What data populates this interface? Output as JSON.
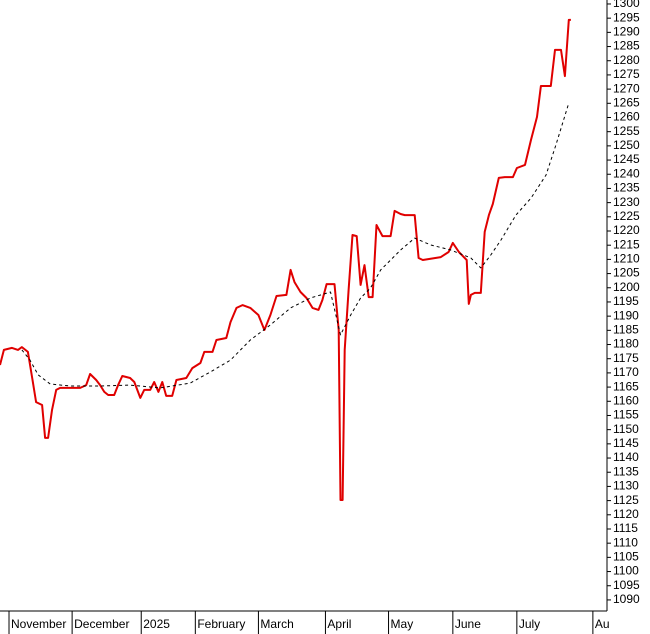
{
  "chart_data": {
    "type": "line",
    "series": [
      {
        "color": "#e00000",
        "dash": false,
        "x": [
          0,
          1.3,
          4,
          6,
          7.3,
          9.3,
          10.7,
          12,
          14,
          15,
          16,
          17.3,
          18.7,
          20,
          23.3,
          26.7,
          28.7,
          30,
          32,
          33.3,
          34.7,
          36,
          38,
          39.3,
          40.7,
          43.3,
          44.7,
          46.7,
          48,
          50,
          51.3,
          52.7,
          54,
          55.3,
          57.3,
          58.7,
          62,
          64,
          66.7,
          68,
          70.7,
          72,
          75.3,
          76.7,
          78.7,
          80.7,
          83.3,
          86,
          88,
          90,
          92,
          95.3,
          96.7,
          98,
          100,
          102,
          104,
          106,
          107.3,
          108.7,
          111.3,
          112.7,
          113.3,
          114,
          114.7,
          116,
          117.3,
          118.7,
          120,
          121.3,
          122.7,
          124,
          125.3,
          127.3,
          130,
          131.3,
          133.3,
          134.7,
          138,
          139.3,
          140.7,
          146.7,
          149.3,
          150.7,
          152.7,
          155.3,
          156,
          156.7,
          158,
          160,
          161.3,
          162.7,
          164,
          166,
          168,
          170.7,
          172,
          174.7,
          176.7,
          178.7,
          180,
          183.3,
          184.7,
          186.7,
          188,
          189.3,
          190
        ],
        "values": [
          1172.8,
          1178.1,
          1178.8,
          1178.1,
          1179.1,
          1177.4,
          1168.2,
          1159.7,
          1158.7,
          1147.1,
          1147.1,
          1156.9,
          1164.0,
          1164.7,
          1164.7,
          1164.7,
          1165.7,
          1169.6,
          1167.5,
          1165.7,
          1163.3,
          1162.2,
          1162.2,
          1165.7,
          1168.9,
          1168.2,
          1166.8,
          1161.2,
          1164.0,
          1164.0,
          1166.8,
          1163.3,
          1166.8,
          1161.9,
          1161.9,
          1167.5,
          1168.2,
          1171.7,
          1173.5,
          1177.4,
          1177.4,
          1181.6,
          1182.3,
          1187.9,
          1192.9,
          1193.9,
          1192.9,
          1190.4,
          1185.1,
          1190.4,
          1197.1,
          1197.5,
          1206.3,
          1202.0,
          1198.5,
          1196.4,
          1192.9,
          1192.2,
          1195.7,
          1201.3,
          1201.3,
          1185.1,
          1125.2,
          1125.2,
          1178.1,
          1199.2,
          1218.6,
          1218.2,
          1201.0,
          1208.0,
          1196.7,
          1196.7,
          1222.1,
          1218.2,
          1218.2,
          1227.1,
          1226.0,
          1225.6,
          1225.6,
          1210.5,
          1209.8,
          1210.8,
          1212.6,
          1215.8,
          1212.6,
          1209.8,
          1194.3,
          1197.5,
          1198.2,
          1198.2,
          1219.7,
          1225.6,
          1229.5,
          1238.7,
          1239.0,
          1239.0,
          1242.2,
          1243.3,
          1252.1,
          1260.2,
          1271.1,
          1271.1,
          1283.8,
          1283.8,
          1274.6,
          1294.4,
          1294.4
        ]
      },
      {
        "color": "#000000",
        "dash": true,
        "x": [
          7.3,
          10,
          12.7,
          16.7,
          23.3,
          33.3,
          43.3,
          53.3,
          63.3,
          70,
          76.7,
          83.3,
          90,
          96.7,
          103.3,
          110,
          113.3,
          116.7,
          120,
          123.3,
          126.7,
          133.3,
          138,
          143.3,
          150,
          156.7,
          160,
          163.3,
          166.7,
          171.7,
          176.7,
          181.7,
          185,
          189.3
        ],
        "values": [
          1178.1,
          1174.5,
          1169.3,
          1166.1,
          1165.4,
          1165.4,
          1165.7,
          1164.7,
          1166.4,
          1170.3,
          1174.5,
          1181.6,
          1186.9,
          1192.9,
          1196.4,
          1198.5,
          1183.4,
          1190.4,
          1196.4,
          1199.9,
          1206.3,
          1213.3,
          1217.5,
          1215.1,
          1213.3,
          1210.5,
          1207.0,
          1211.5,
          1216.8,
          1225.6,
          1231.6,
          1239.7,
          1250.3,
          1265.1
        ]
      }
    ],
    "xlim": [
      0,
      202
    ],
    "xticks": [
      {
        "value": 3,
        "label": "November"
      },
      {
        "value": 24,
        "label": "December"
      },
      {
        "value": 47,
        "label": "2025"
      },
      {
        "value": 65,
        "label": "February"
      },
      {
        "value": 86,
        "label": "March"
      },
      {
        "value": 108.3,
        "label": "April"
      },
      {
        "value": 129.3,
        "label": "May"
      },
      {
        "value": 150.7,
        "label": "June"
      },
      {
        "value": 172,
        "label": "July"
      },
      {
        "value": 197.3,
        "label": "Au"
      }
    ],
    "ylim": [
      1086.1,
      1301.4
    ],
    "yticks": [
      1090,
      1095,
      1100,
      1105,
      1110,
      1115,
      1120,
      1125,
      1130,
      1135,
      1140,
      1145,
      1150,
      1155,
      1160,
      1165,
      1170,
      1175,
      1180,
      1185,
      1190,
      1195,
      1200,
      1205,
      1210,
      1215,
      1220,
      1225,
      1230,
      1235,
      1240,
      1245,
      1250,
      1255,
      1260,
      1265,
      1270,
      1275,
      1280,
      1285,
      1290,
      1295,
      1300
    ]
  }
}
